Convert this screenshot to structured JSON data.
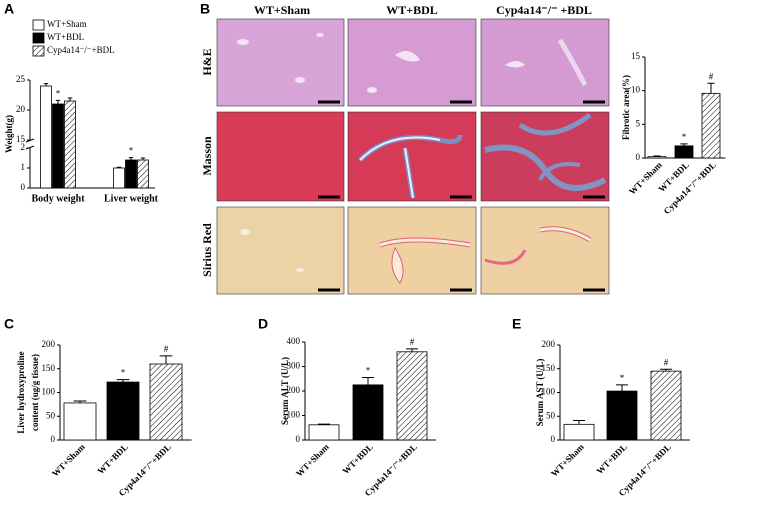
{
  "figure": {
    "panel_labels": [
      "A",
      "B",
      "C",
      "D",
      "E"
    ],
    "image_grid": {
      "columns": [
        "WT+Sham",
        "WT+BDL",
        "Cyp4a14⁻/⁻ +BDL"
      ],
      "rows": [
        "H&E",
        "Masson",
        "Sirius  Red"
      ]
    }
  },
  "chart_data": [
    {
      "type": "bar",
      "y_label": "Weight(g)",
      "categories": [
        "Body  weight",
        "Liver weight"
      ],
      "series": [
        {
          "name": "WT+Sham",
          "fill": "white",
          "values": [
            24,
            1.0
          ],
          "errors": [
            0.4,
            0.04
          ],
          "annotations": [
            null,
            null
          ]
        },
        {
          "name": "WT+BDL",
          "fill": "black",
          "values": [
            21,
            1.4
          ],
          "errors": [
            0.6,
            0.12
          ],
          "annotations": [
            "*",
            "*"
          ]
        },
        {
          "name": "Cyp4a14⁻/⁻+BDL",
          "fill": "hatch",
          "values": [
            21.5,
            1.4
          ],
          "errors": [
            0.5,
            0.1
          ],
          "annotations": [
            null,
            null
          ]
        }
      ],
      "ylim": [
        0,
        25
      ],
      "ybreak": [
        2,
        15
      ],
      "yticks": [
        0,
        1,
        2,
        15,
        20,
        25
      ]
    },
    {
      "type": "bar",
      "y_label": "Fibrotic area(%)",
      "categories": [
        "WT+Sham",
        "WT+BDL",
        "Cyp4a14⁻/⁻+BDL"
      ],
      "values": [
        0.2,
        1.8,
        9.6
      ],
      "errors": [
        0.1,
        0.3,
        1.5
      ],
      "annotations": [
        null,
        "*",
        "#"
      ],
      "fills": [
        "white",
        "black",
        "hatch"
      ],
      "ylim": [
        0,
        15
      ],
      "yticks": [
        0,
        5,
        10,
        15
      ]
    },
    {
      "type": "bar",
      "y_label": [
        "Liver hydroxyproline",
        "content  (ug/g tissue)"
      ],
      "categories": [
        "WT+Sham",
        "WT+BDL",
        "Cyp4a14⁻/⁻+BDL"
      ],
      "values": [
        78,
        122,
        160
      ],
      "errors": [
        4,
        5,
        17
      ],
      "annotations": [
        null,
        "*",
        "#"
      ],
      "fills": [
        "white",
        "black",
        "hatch"
      ],
      "ylim": [
        0,
        200
      ],
      "yticks": [
        0,
        50,
        100,
        150,
        200
      ]
    },
    {
      "type": "bar",
      "y_label": "Serum ALT (U/L)",
      "categories": [
        "WT+Sham",
        "WT+BDL",
        "Cyp4a14⁻/⁻+BDL"
      ],
      "values": [
        62,
        225,
        360
      ],
      "errors": [
        3,
        30,
        12
      ],
      "annotations": [
        null,
        "*",
        "#"
      ],
      "fills": [
        "white",
        "black",
        "hatch"
      ],
      "ylim": [
        0,
        400
      ],
      "yticks": [
        0,
        100,
        200,
        300,
        400
      ]
    },
    {
      "type": "bar",
      "y_label": "Serum AST (U/L)",
      "categories": [
        "WT+Sham",
        "WT+BDL",
        "Cyp4a14⁻/⁻+BDL"
      ],
      "values": [
        33,
        103,
        145
      ],
      "errors": [
        8,
        13,
        4
      ],
      "annotations": [
        null,
        "*",
        "#"
      ],
      "fills": [
        "white",
        "black",
        "hatch"
      ],
      "ylim": [
        0,
        200
      ],
      "yticks": [
        0,
        50,
        100,
        150,
        200
      ]
    }
  ]
}
